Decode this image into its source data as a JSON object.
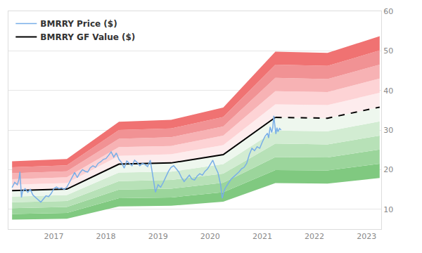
{
  "chart_data": {
    "type": "line",
    "series": [
      {
        "name": "BMRRY GF Value ($)",
        "color": "#000000",
        "x": [
          2016.2,
          2017.25,
          2018.25,
          2019.25,
          2020.25,
          2021.25,
          2022.25,
          2023.25
        ],
        "values": [
          14.7,
          15.1,
          21.4,
          21.7,
          23.8,
          33.2,
          33.0,
          35.8
        ],
        "projection_start": 2021.25
      },
      {
        "name": "BMRRY Price ($)",
        "color": "#78aee8",
        "x": [
          2016.2,
          2016.25,
          2016.3,
          2016.33,
          2016.35,
          2016.38,
          2016.4,
          2016.45,
          2016.5,
          2016.55,
          2016.6,
          2016.65,
          2016.7,
          2016.75,
          2016.8,
          2016.85,
          2016.9,
          2016.95,
          2017.0,
          2017.05,
          2017.1,
          2017.15,
          2017.2,
          2017.25,
          2017.3,
          2017.35,
          2017.4,
          2017.45,
          2017.5,
          2017.55,
          2017.6,
          2017.65,
          2017.7,
          2017.75,
          2017.8,
          2017.85,
          2017.9,
          2017.95,
          2018.0,
          2018.05,
          2018.1,
          2018.15,
          2018.2,
          2018.25,
          2018.3,
          2018.35,
          2018.4,
          2018.45,
          2018.5,
          2018.55,
          2018.6,
          2018.65,
          2018.7,
          2018.75,
          2018.8,
          2018.85,
          2018.9,
          2018.93,
          2018.95,
          2019.0,
          2019.05,
          2019.1,
          2019.15,
          2019.2,
          2019.25,
          2019.3,
          2019.35,
          2019.4,
          2019.45,
          2019.5,
          2019.55,
          2019.6,
          2019.65,
          2019.7,
          2019.75,
          2019.8,
          2019.85,
          2019.9,
          2019.95,
          2020.0,
          2020.05,
          2020.1,
          2020.15,
          2020.2,
          2020.23,
          2020.27,
          2020.3,
          2020.35,
          2020.4,
          2020.45,
          2020.5,
          2020.55,
          2020.6,
          2020.65,
          2020.7,
          2020.75,
          2020.8,
          2020.85,
          2020.9,
          2020.95,
          2021.0,
          2021.05,
          2021.1,
          2021.12,
          2021.15,
          2021.18,
          2021.2,
          2021.22,
          2021.24,
          2021.26,
          2021.28,
          2021.3,
          2021.33,
          2021.36
        ],
        "values": [
          15.5,
          16.8,
          16.2,
          17.5,
          19.5,
          13.0,
          14.5,
          15.2,
          14.3,
          15.0,
          13.6,
          13.0,
          12.3,
          11.8,
          12.6,
          13.4,
          13.2,
          14.0,
          15.2,
          15.6,
          15.2,
          15.4,
          15.0,
          15.6,
          16.8,
          18.2,
          19.3,
          18.0,
          19.2,
          20.0,
          19.6,
          19.4,
          20.5,
          21.0,
          20.6,
          21.6,
          22.0,
          22.6,
          22.8,
          23.6,
          24.5,
          23.2,
          24.2,
          22.6,
          21.8,
          20.4,
          22.2,
          21.6,
          21.0,
          22.4,
          21.8,
          21.0,
          21.6,
          21.3,
          20.8,
          22.4,
          18.2,
          15.5,
          14.3,
          16.2,
          15.6,
          16.8,
          18.2,
          19.6,
          20.6,
          21.0,
          20.2,
          19.4,
          18.0,
          17.0,
          17.8,
          18.6,
          17.6,
          17.4,
          18.4,
          19.0,
          18.6,
          19.6,
          20.2,
          21.2,
          22.4,
          20.6,
          19.2,
          16.2,
          12.8,
          14.8,
          15.6,
          16.6,
          17.6,
          18.2,
          18.8,
          19.4,
          20.2,
          20.6,
          21.6,
          23.8,
          25.4,
          24.8,
          25.8,
          25.4,
          27.0,
          28.4,
          29.2,
          28.0,
          30.8,
          29.4,
          30.6,
          33.6,
          31.2,
          29.0,
          30.6,
          29.6,
          30.4,
          30.0
        ]
      }
    ],
    "bands": {
      "x": [
        2016.2,
        2017.25,
        2018.25,
        2019.25,
        2020.25,
        2021.25,
        2022.25,
        2023.25
      ],
      "edges": [
        [
          7.4,
          7.6,
          10.7,
          10.9,
          11.9,
          16.6,
          16.5,
          17.9
        ],
        [
          8.8,
          9.1,
          12.8,
          13.0,
          14.3,
          19.9,
          19.8,
          21.5
        ],
        [
          10.3,
          10.6,
          15.0,
          15.2,
          16.7,
          23.2,
          23.1,
          25.1
        ],
        [
          11.8,
          12.1,
          17.1,
          17.4,
          19.0,
          26.6,
          26.4,
          28.6
        ],
        [
          13.2,
          13.6,
          19.3,
          19.5,
          21.4,
          29.9,
          29.7,
          32.2
        ],
        [
          14.7,
          15.1,
          21.4,
          21.7,
          23.8,
          33.2,
          33.0,
          35.8
        ],
        [
          16.2,
          16.6,
          23.5,
          23.9,
          26.2,
          36.5,
          36.3,
          39.4
        ],
        [
          17.6,
          18.1,
          25.7,
          26.0,
          28.6,
          39.8,
          39.6,
          43.0
        ],
        [
          19.1,
          19.6,
          27.8,
          28.2,
          30.9,
          43.2,
          42.9,
          46.5
        ],
        [
          20.6,
          21.1,
          30.0,
          30.4,
          33.3,
          46.5,
          46.2,
          50.1
        ],
        [
          22.1,
          22.7,
          32.1,
          32.6,
          35.7,
          49.8,
          49.5,
          53.7
        ]
      ],
      "colors": [
        "#80c980",
        "#9bd59b",
        "#b7e1b7",
        "#d2ecd2",
        "#eef7ee",
        "#fdeced",
        "#fdd3d5",
        "#f7b2b4",
        "#f19294",
        "#f07272"
      ]
    },
    "xlim": [
      2016.13,
      2023.28
    ],
    "xticks": [
      2017,
      2018,
      2019,
      2020,
      2021,
      2022,
      2023
    ],
    "ylim": [
      5,
      60
    ],
    "yticks": [
      10,
      20,
      30,
      40,
      50,
      60
    ],
    "grid": true,
    "legend": "upper left"
  }
}
